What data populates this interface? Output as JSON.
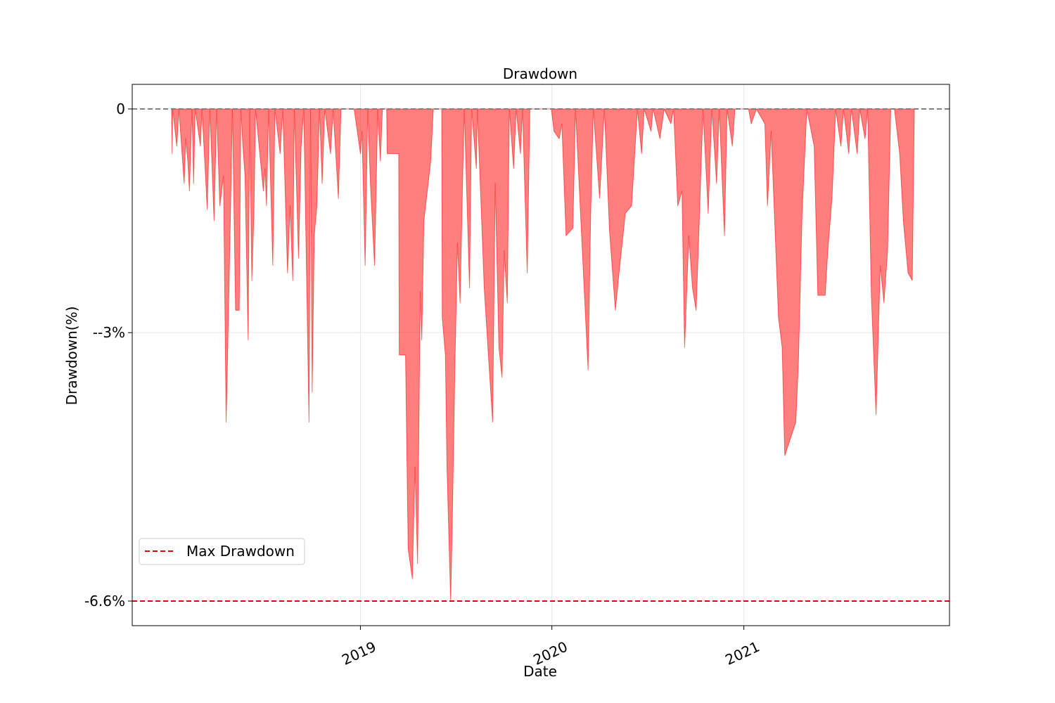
{
  "chart_data": {
    "type": "area",
    "title": "Drawdown",
    "xlabel": "Date",
    "ylabel": "Drawdown(%)",
    "x_ticks": [
      {
        "date": "2019-01-01",
        "label": "2019"
      },
      {
        "date": "2020-01-01",
        "label": "2020"
      },
      {
        "date": "2021-01-01",
        "label": "2021"
      }
    ],
    "y_ticks": [
      {
        "value": 0,
        "label": "0"
      },
      {
        "value": -3.0,
        "label": "--3%"
      },
      {
        "value": -6.6,
        "label": "-6.6%"
      }
    ],
    "xlim": [
      "2017-10-23",
      "2022-01-28"
    ],
    "ylim": [
      -6.93,
      0.33
    ],
    "grid": true,
    "legend": {
      "position": "lower-left",
      "entries": [
        "Max Drawdown"
      ]
    },
    "zero_line": {
      "value": 0,
      "color": "#808080",
      "style": "dashed"
    },
    "max_drawdown": {
      "label": "Max Drawdown",
      "value": -6.6,
      "color": "#e00000",
      "style": "dashed"
    },
    "fill_color": "#ff0000",
    "fill_opacity": 0.5,
    "series": [
      {
        "name": "Drawdown",
        "points": [
          [
            "2018-01-06",
            0.0
          ],
          [
            "2018-01-07",
            -0.6
          ],
          [
            "2018-01-08",
            0.0
          ],
          [
            "2018-01-16",
            -0.5
          ],
          [
            "2018-01-20",
            0.0
          ],
          [
            "2018-01-30",
            -1.0
          ],
          [
            "2018-02-02",
            -0.4
          ],
          [
            "2018-02-06",
            -0.7
          ],
          [
            "2018-02-09",
            -1.1
          ],
          [
            "2018-02-14",
            0.0
          ],
          [
            "2018-02-17",
            -1.0
          ],
          [
            "2018-02-20",
            0.0
          ],
          [
            "2018-03-02",
            -0.5
          ],
          [
            "2018-03-05",
            0.0
          ],
          [
            "2018-03-15",
            -1.35
          ],
          [
            "2018-03-20",
            0.0
          ],
          [
            "2018-03-28",
            -1.5
          ],
          [
            "2018-04-02",
            0.0
          ],
          [
            "2018-04-08",
            -1.3
          ],
          [
            "2018-04-15",
            -0.9
          ],
          [
            "2018-04-20",
            -4.2
          ],
          [
            "2018-04-22",
            -3.6
          ],
          [
            "2018-04-28",
            -1.5
          ],
          [
            "2018-05-02",
            0.0
          ],
          [
            "2018-05-08",
            -2.7
          ],
          [
            "2018-05-15",
            -2.7
          ],
          [
            "2018-05-18",
            0.0
          ],
          [
            "2018-05-22",
            -0.5
          ],
          [
            "2018-05-26",
            -0.9
          ],
          [
            "2018-06-01",
            -3.1
          ],
          [
            "2018-06-04",
            0.0
          ],
          [
            "2018-06-08",
            -2.3
          ],
          [
            "2018-06-12",
            -1.4
          ],
          [
            "2018-06-15",
            0.0
          ],
          [
            "2018-06-30",
            -1.1
          ],
          [
            "2018-07-03",
            -0.8
          ],
          [
            "2018-07-06",
            -1.3
          ],
          [
            "2018-07-10",
            0.0
          ],
          [
            "2018-07-18",
            -2.1
          ],
          [
            "2018-07-22",
            0.0
          ],
          [
            "2018-08-01",
            -0.6
          ],
          [
            "2018-08-06",
            0.0
          ],
          [
            "2018-08-15",
            -2.2
          ],
          [
            "2018-08-20",
            -1.3
          ],
          [
            "2018-08-25",
            -2.3
          ],
          [
            "2018-08-28",
            0.0
          ],
          [
            "2018-09-05",
            -2.0
          ],
          [
            "2018-09-10",
            -0.5
          ],
          [
            "2018-09-15",
            0.0
          ],
          [
            "2018-09-25",
            -4.2
          ],
          [
            "2018-09-28",
            0.0
          ],
          [
            "2018-10-01",
            -3.8
          ],
          [
            "2018-10-05",
            -1.7
          ],
          [
            "2018-10-10",
            -1.3
          ],
          [
            "2018-10-15",
            0.0
          ],
          [
            "2018-10-20",
            -1.0
          ],
          [
            "2018-10-25",
            0.0
          ],
          [
            "2018-11-05",
            -0.6
          ],
          [
            "2018-11-10",
            0.0
          ],
          [
            "2018-11-20",
            -1.2
          ],
          [
            "2018-11-25",
            0.0
          ],
          [
            "2018-12-20",
            0.0
          ],
          [
            "2019-01-01",
            -0.6
          ],
          [
            "2019-01-04",
            -0.3
          ],
          [
            "2019-01-10",
            -2.1
          ],
          [
            "2019-01-15",
            0.0
          ],
          [
            "2019-01-20",
            -1.0
          ],
          [
            "2019-01-28",
            -2.1
          ],
          [
            "2019-02-03",
            0.0
          ],
          [
            "2019-02-08",
            -0.7
          ],
          [
            "2019-02-12",
            0.0
          ],
          [
            "2019-02-20",
            0.0
          ],
          [
            "2019-02-21",
            -0.6
          ],
          [
            "2019-03-15",
            -0.6
          ],
          [
            "2019-03-16",
            -3.3
          ],
          [
            "2019-03-28",
            -3.3
          ],
          [
            "2019-04-02",
            -5.9
          ],
          [
            "2019-04-10",
            -6.3
          ],
          [
            "2019-04-15",
            -4.8
          ],
          [
            "2019-04-20",
            -6.1
          ],
          [
            "2019-04-25",
            -2.45
          ],
          [
            "2019-04-28",
            -3.1
          ],
          [
            "2019-05-02",
            -1.5
          ],
          [
            "2019-05-15",
            -0.7
          ],
          [
            "2019-05-20",
            0.0
          ],
          [
            "2019-06-05",
            0.0
          ],
          [
            "2019-06-06",
            -2.8
          ],
          [
            "2019-06-12",
            -3.3
          ],
          [
            "2019-06-15",
            -4.8
          ],
          [
            "2019-06-22",
            -6.6
          ],
          [
            "2019-06-25",
            -5.6
          ],
          [
            "2019-06-30",
            -3.5
          ],
          [
            "2019-07-05",
            -1.8
          ],
          [
            "2019-07-10",
            -2.6
          ],
          [
            "2019-07-15",
            -0.9
          ],
          [
            "2019-07-18",
            0.0
          ],
          [
            "2019-07-28",
            -2.4
          ],
          [
            "2019-08-01",
            0.0
          ],
          [
            "2019-08-10",
            -0.8
          ],
          [
            "2019-08-12",
            0.0
          ],
          [
            "2019-08-25",
            -2.4
          ],
          [
            "2019-09-10",
            -4.2
          ],
          [
            "2019-09-15",
            -1.0
          ],
          [
            "2019-09-22",
            -3.2
          ],
          [
            "2019-09-28",
            -3.6
          ],
          [
            "2019-10-02",
            -1.9
          ],
          [
            "2019-10-08",
            -2.6
          ],
          [
            "2019-10-12",
            0.0
          ],
          [
            "2019-10-20",
            -0.8
          ],
          [
            "2019-10-25",
            0.0
          ],
          [
            "2019-11-02",
            -0.6
          ],
          [
            "2019-11-06",
            0.0
          ],
          [
            "2019-11-15",
            -2.2
          ],
          [
            "2019-11-20",
            0.0
          ],
          [
            "2019-12-31",
            0.0
          ],
          [
            "2020-01-05",
            -0.3
          ],
          [
            "2020-01-15",
            -0.4
          ],
          [
            "2020-01-20",
            -0.2
          ],
          [
            "2020-01-28",
            -1.7
          ],
          [
            "2020-02-10",
            -1.6
          ],
          [
            "2020-02-15",
            0.0
          ],
          [
            "2020-03-10",
            -3.5
          ],
          [
            "2020-03-15",
            -1.4
          ],
          [
            "2020-03-20",
            0.0
          ],
          [
            "2020-04-01",
            -1.2
          ],
          [
            "2020-04-10",
            0.0
          ],
          [
            "2020-04-20",
            -1.65
          ],
          [
            "2020-05-01",
            -2.7
          ],
          [
            "2020-05-08",
            -2.2
          ],
          [
            "2020-05-20",
            -1.4
          ],
          [
            "2020-06-01",
            -1.3
          ],
          [
            "2020-06-12",
            0.0
          ],
          [
            "2020-06-20",
            -0.6
          ],
          [
            "2020-06-25",
            0.0
          ],
          [
            "2020-07-08",
            -0.3
          ],
          [
            "2020-07-12",
            0.0
          ],
          [
            "2020-07-25",
            -0.4
          ],
          [
            "2020-08-02",
            0.0
          ],
          [
            "2020-08-15",
            -0.2
          ],
          [
            "2020-08-20",
            0.0
          ],
          [
            "2020-08-28",
            -1.3
          ],
          [
            "2020-09-05",
            -1.1
          ],
          [
            "2020-09-10",
            -3.2
          ],
          [
            "2020-09-18",
            -1.7
          ],
          [
            "2020-09-25",
            -2.4
          ],
          [
            "2020-10-02",
            -2.7
          ],
          [
            "2020-10-08",
            -1.5
          ],
          [
            "2020-10-15",
            0.0
          ],
          [
            "2020-10-25",
            -1.4
          ],
          [
            "2020-11-01",
            0.0
          ],
          [
            "2020-11-10",
            -1.0
          ],
          [
            "2020-11-15",
            0.0
          ],
          [
            "2020-11-25",
            -1.7
          ],
          [
            "2020-11-30",
            0.0
          ],
          [
            "2020-12-10",
            -0.5
          ],
          [
            "2020-12-15",
            0.0
          ],
          [
            "2021-01-10",
            0.0
          ],
          [
            "2021-01-15",
            -0.2
          ],
          [
            "2021-01-25",
            0.0
          ],
          [
            "2021-02-10",
            -0.2
          ],
          [
            "2021-02-15",
            -1.3
          ],
          [
            "2021-02-22",
            -0.3
          ],
          [
            "2021-03-08",
            -2.8
          ],
          [
            "2021-03-15",
            -3.2
          ],
          [
            "2021-03-20",
            -4.65
          ],
          [
            "2021-04-10",
            -4.2
          ],
          [
            "2021-04-15",
            -3.4
          ],
          [
            "2021-04-22",
            -1.4
          ],
          [
            "2021-05-01",
            0.0
          ],
          [
            "2021-05-15",
            -0.5
          ],
          [
            "2021-05-22",
            -2.5
          ],
          [
            "2021-06-05",
            -2.5
          ],
          [
            "2021-06-10",
            -1.9
          ],
          [
            "2021-06-18",
            -1.2
          ],
          [
            "2021-06-25",
            0.0
          ],
          [
            "2021-07-05",
            -0.5
          ],
          [
            "2021-07-10",
            0.0
          ],
          [
            "2021-07-20",
            -0.6
          ],
          [
            "2021-07-25",
            0.0
          ],
          [
            "2021-08-05",
            -0.6
          ],
          [
            "2021-08-10",
            0.0
          ],
          [
            "2021-08-20",
            -0.4
          ],
          [
            "2021-08-25",
            0.0
          ],
          [
            "2021-09-01",
            -2.5
          ],
          [
            "2021-09-10",
            -4.1
          ],
          [
            "2021-09-18",
            -2.1
          ],
          [
            "2021-09-25",
            -2.6
          ],
          [
            "2021-10-02",
            -1.9
          ],
          [
            "2021-10-08",
            0.0
          ],
          [
            "2021-10-15",
            0.0
          ],
          [
            "2021-10-25",
            -0.6
          ],
          [
            "2021-11-01",
            -1.5
          ],
          [
            "2021-11-10",
            -2.2
          ],
          [
            "2021-11-18",
            -2.3
          ],
          [
            "2021-11-22",
            0.0
          ]
        ]
      }
    ]
  }
}
